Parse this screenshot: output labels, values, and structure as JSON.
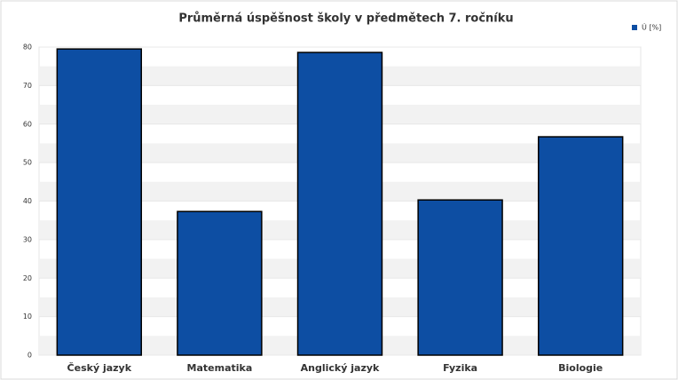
{
  "chart_data": {
    "type": "bar",
    "title": "Průměrná úspěšnost školy v předmětech 7. ročníku",
    "categories": [
      "Český jazyk",
      "Matematika",
      "Anglický jazyk",
      "Fyzika",
      "Biologie"
    ],
    "series": [
      {
        "name": "Ú [%]",
        "color": "#0d4ea3",
        "values": [
          79.5,
          37.3,
          78.6,
          40.3,
          56.7
        ]
      }
    ],
    "ylim": [
      0,
      80
    ],
    "yticks": [
      0,
      10,
      20,
      30,
      40,
      50,
      60,
      70,
      80
    ],
    "grid": true,
    "legend": "top-right"
  }
}
